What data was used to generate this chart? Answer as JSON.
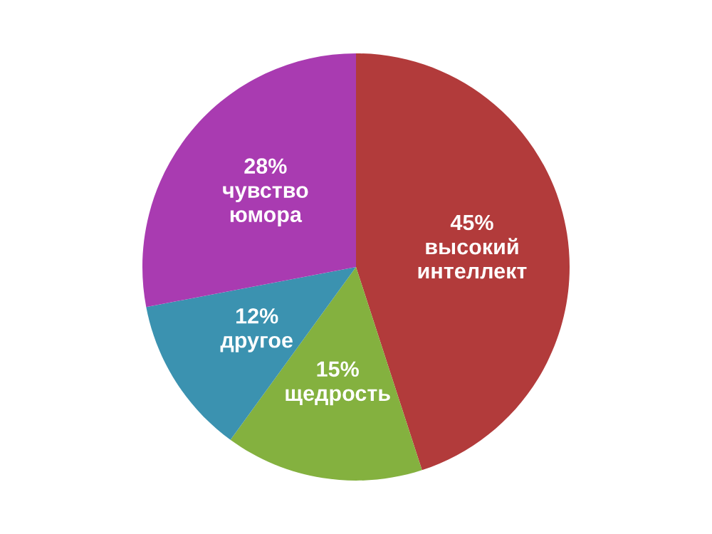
{
  "chart_data": {
    "type": "pie",
    "categories": [
      "высокий интеллект",
      "щедрость",
      "другое",
      "чувство юмора"
    ],
    "values": [
      45,
      15,
      12,
      28
    ],
    "value_labels": [
      "45%",
      "15%",
      "12%",
      "28%"
    ],
    "colors": [
      "#b23b3b",
      "#84b13f",
      "#3b92b0",
      "#a93bb1"
    ]
  }
}
